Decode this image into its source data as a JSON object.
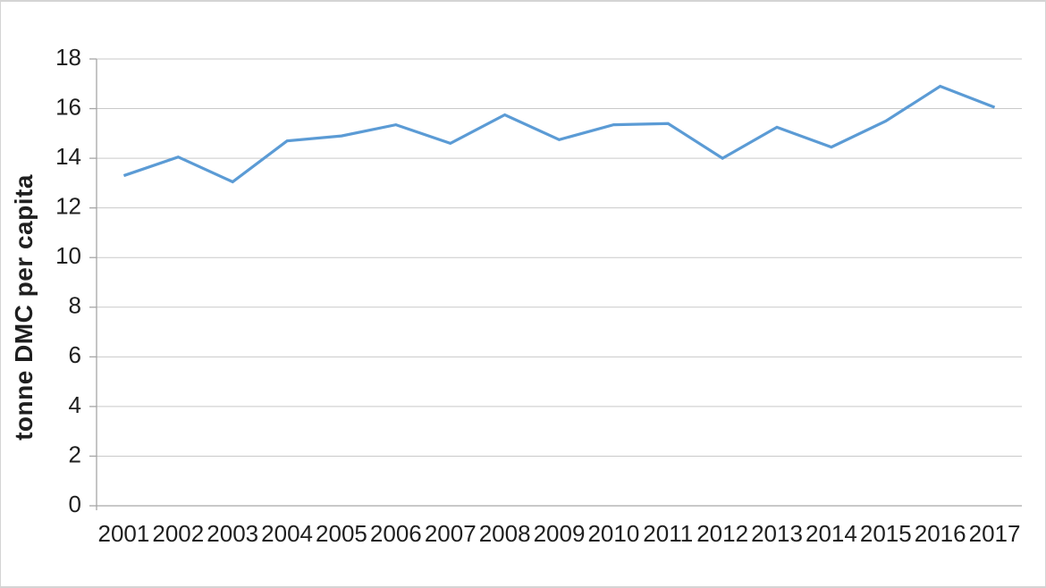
{
  "chart_data": {
    "type": "line",
    "title": "",
    "xlabel": "",
    "ylabel": "tonne DMC per capita",
    "categories": [
      "2001",
      "2002",
      "2003",
      "2004",
      "2005",
      "2006",
      "2007",
      "2008",
      "2009",
      "2010",
      "2011",
      "2012",
      "2013",
      "2014",
      "2015",
      "2016",
      "2017"
    ],
    "series": [
      {
        "name": "tonne DMC per capita",
        "values": [
          13.3,
          14.05,
          13.05,
          14.7,
          14.9,
          15.35,
          14.6,
          15.75,
          14.75,
          15.35,
          15.4,
          14.0,
          15.25,
          14.45,
          15.5,
          16.9,
          16.05
        ]
      }
    ],
    "ylim": [
      0,
      18
    ],
    "yticks": [
      0,
      2,
      4,
      6,
      8,
      10,
      12,
      14,
      16,
      18
    ],
    "grid": "horizontal",
    "legend": "none"
  },
  "colors": {
    "line": "#5B9BD5",
    "gridline": "#C9C9C9",
    "axis": "#A6A6A6",
    "text": "#1F1F1F",
    "background": "#FFFFFF",
    "frame_border": "#D4D4D4"
  }
}
